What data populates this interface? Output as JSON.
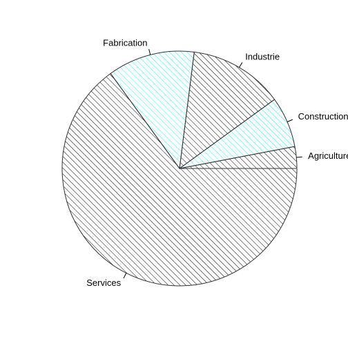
{
  "chart_data": {
    "type": "pie",
    "slices": [
      {
        "label": "Agriculture",
        "value": 3,
        "hatch_color": "#000000"
      },
      {
        "label": "Construction",
        "value": 7,
        "hatch_color": "#00ffff"
      },
      {
        "label": "Industrie",
        "value": 13,
        "hatch_color": "#000000"
      },
      {
        "label": "Fabrication",
        "value": 12,
        "hatch_color": "#00ffff"
      },
      {
        "label": "Services",
        "value": 65,
        "hatch_color": "#000000"
      }
    ],
    "direction": "counterclockwise",
    "start_angle_deg": 0,
    "fill": "hatched",
    "border_color": "#333333"
  }
}
